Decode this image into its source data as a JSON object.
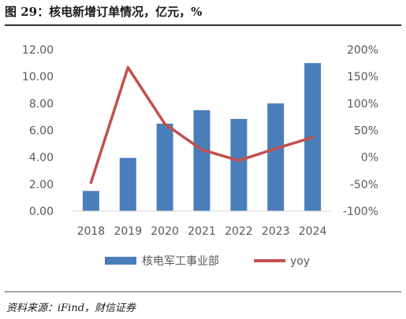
{
  "figure": {
    "title": "图 29：核电新增订单情况，亿元，%",
    "source": "资料来源：iFind，财信证券"
  },
  "colors": {
    "bar": "#4a7ebb",
    "line": "#c0504d",
    "axis_text": "#595959"
  },
  "chart_data": {
    "type": "bar",
    "categories": [
      "2018",
      "2019",
      "2020",
      "2021",
      "2022",
      "2023",
      "2024"
    ],
    "series": [
      {
        "name": "核电军工事业部",
        "type": "bar",
        "axis": "left",
        "values": [
          1.5,
          3.95,
          6.5,
          7.5,
          6.85,
          8.0,
          11.0
        ]
      },
      {
        "name": "yoy",
        "type": "line",
        "axis": "right",
        "values": [
          -47,
          167,
          62,
          14,
          -6,
          16,
          37
        ]
      }
    ],
    "y_left": {
      "ylim": [
        0,
        12
      ],
      "ticks": [
        "0.00",
        "2.00",
        "4.00",
        "6.00",
        "8.00",
        "10.00",
        "12.00"
      ]
    },
    "y_right": {
      "ylim": [
        -100,
        200
      ],
      "ticks": [
        "-100%",
        "-50%",
        "0%",
        "50%",
        "100%",
        "150%",
        "200%"
      ]
    },
    "grid": false,
    "legend_position": "bottom"
  }
}
